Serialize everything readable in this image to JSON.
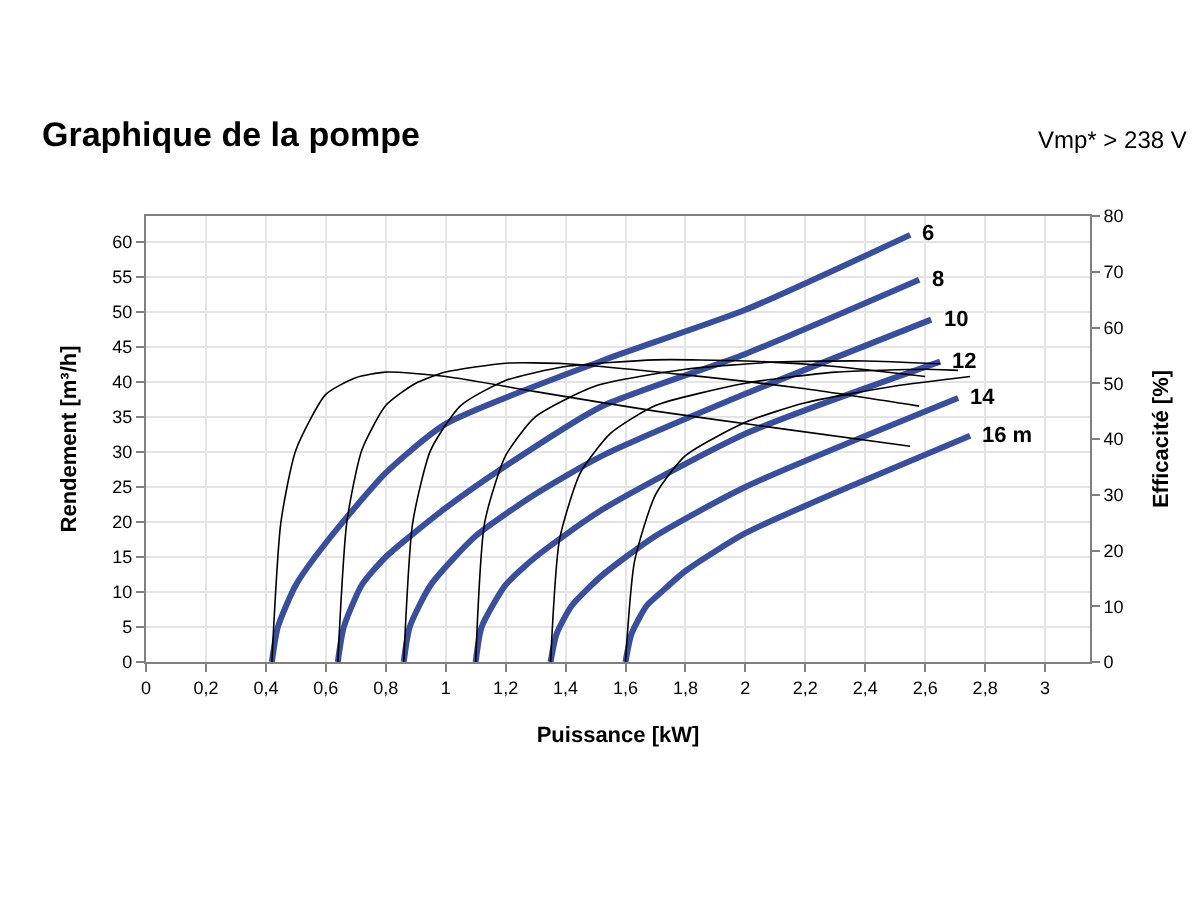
{
  "chart_data": {
    "type": "line",
    "title": "Graphique de la pompe",
    "subtitle": "Vmp* > 238 V",
    "xlabel": "Puissance [kW]",
    "ylabel": "Rendement [m³/h]",
    "y2label": "Efficacité [%]",
    "xlim": [
      0,
      3.15
    ],
    "xticks": [
      0,
      {
        "value": 0.2,
        "label": "0,2"
      },
      {
        "value": 0.4,
        "label": "0,4"
      },
      {
        "value": 0.6,
        "label": "0,6"
      },
      {
        "value": 0.8,
        "label": "0,8"
      },
      1,
      {
        "value": 1.2,
        "label": "1,2"
      },
      {
        "value": 1.4,
        "label": "1,4"
      },
      {
        "value": 1.6,
        "label": "1,6"
      },
      {
        "value": 1.8,
        "label": "1,8"
      },
      2,
      {
        "value": 2.2,
        "label": "2,2"
      },
      {
        "value": 2.4,
        "label": "2,4"
      },
      {
        "value": 2.6,
        "label": "2,6"
      },
      {
        "value": 2.8,
        "label": "2,8"
      },
      3
    ],
    "ylim": [
      0,
      63.7
    ],
    "yticks": [
      0,
      5,
      10,
      15,
      20,
      25,
      30,
      35,
      40,
      45,
      50,
      55,
      60
    ],
    "y2lim": [
      0,
      80
    ],
    "y2ticks": [
      0,
      10,
      20,
      30,
      40,
      50,
      60,
      70,
      80
    ],
    "grid": true,
    "legend": false,
    "marker": "none",
    "line_style": "solid",
    "series": [
      {
        "name": "6",
        "color": "#3a4f9c",
        "x": [
          0.42,
          0.44,
          0.5,
          0.6,
          0.8,
          1.0,
          1.52,
          2.0,
          2.55
        ],
        "values": [
          0,
          5,
          11,
          17,
          27,
          34,
          43,
          50.3,
          61
        ]
      },
      {
        "name": "8",
        "color": "#3a4f9c",
        "x": [
          0.64,
          0.66,
          0.72,
          0.8,
          1.0,
          1.2,
          1.52,
          2.0,
          2.58
        ],
        "values": [
          0,
          5,
          11,
          15,
          22,
          28,
          36.5,
          44,
          54.6
        ]
      },
      {
        "name": "10",
        "color": "#3a4f9c",
        "x": [
          0.86,
          0.88,
          0.95,
          1.1,
          1.3,
          1.52,
          2.0,
          2.62
        ],
        "values": [
          0,
          5,
          11,
          18,
          24,
          29.4,
          38.3,
          48.9
        ]
      },
      {
        "name": "12",
        "color": "#3a4f9c",
        "x": [
          1.1,
          1.12,
          1.2,
          1.3,
          1.52,
          2.0,
          2.65
        ],
        "values": [
          0,
          5,
          11,
          15,
          21.7,
          32.6,
          42.9
        ]
      },
      {
        "name": "14",
        "color": "#3a4f9c",
        "x": [
          1.35,
          1.37,
          1.42,
          1.52,
          1.7,
          2.0,
          2.71
        ],
        "values": [
          0,
          4,
          8,
          12.3,
          18,
          25,
          37.7
        ]
      },
      {
        "name": "16 m",
        "color": "#3a4f9c",
        "x": [
          1.6,
          1.62,
          1.67,
          1.72,
          1.8,
          2.0,
          2.4,
          2.75
        ],
        "values": [
          0,
          4,
          8,
          10,
          13,
          18.4,
          26,
          32.3
        ]
      },
      {
        "axis": "y2",
        "color": "#000000",
        "x": [
          0.42,
          0.45,
          0.5,
          0.6,
          0.7,
          0.8,
          1.0,
          1.3,
          1.7,
          2.1,
          2.55
        ],
        "values": [
          0,
          25,
          38,
          48,
          51,
          52,
          51.2,
          48.5,
          45,
          42,
          38.7
        ]
      },
      {
        "axis": "y2",
        "color": "#000000",
        "x": [
          0.64,
          0.67,
          0.72,
          0.8,
          0.9,
          1.0,
          1.2,
          1.4,
          1.8,
          2.2,
          2.58
        ],
        "values": [
          0,
          25,
          38,
          46,
          50,
          52,
          53.6,
          53.5,
          51.5,
          49,
          45.9
        ]
      },
      {
        "axis": "y2",
        "color": "#000000",
        "x": [
          0.86,
          0.89,
          0.95,
          1.05,
          1.2,
          1.4,
          1.7,
          2.0,
          2.3,
          2.6
        ],
        "values": [
          0,
          25,
          38,
          46,
          50.5,
          53,
          54.2,
          54,
          53,
          51.2
        ]
      },
      {
        "axis": "y2",
        "color": "#000000",
        "x": [
          1.1,
          1.13,
          1.2,
          1.3,
          1.5,
          1.8,
          2.1,
          2.4,
          2.65
        ],
        "values": [
          0,
          25,
          37,
          44,
          49.5,
          52.5,
          53.8,
          54,
          53.5
        ]
      },
      {
        "axis": "y2",
        "color": "#000000",
        "x": [
          1.35,
          1.38,
          1.45,
          1.55,
          1.7,
          2.0,
          2.3,
          2.6,
          2.71
        ],
        "values": [
          0,
          22,
          34,
          41,
          46,
          50,
          52,
          52.5,
          52.3
        ]
      },
      {
        "axis": "y2",
        "color": "#000000",
        "x": [
          1.6,
          1.63,
          1.7,
          1.8,
          2.0,
          2.2,
          2.5,
          2.75
        ],
        "values": [
          0,
          18,
          30,
          37,
          43,
          46.5,
          49.5,
          51.2
        ]
      }
    ]
  }
}
